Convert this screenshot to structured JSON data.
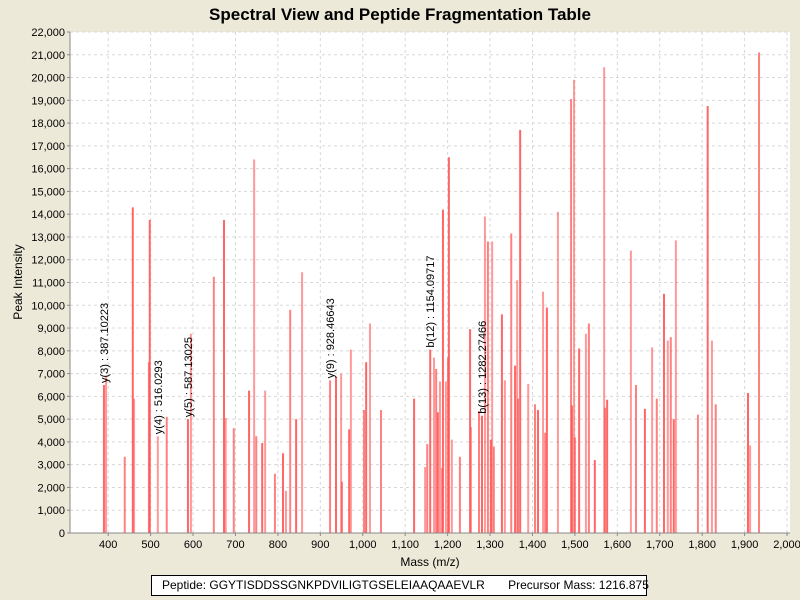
{
  "chart_data": {
    "type": "bar",
    "title": "Spectral View and Peptide Fragmentation Table",
    "xlabel": "Mass (m/z)",
    "ylabel": "Peak Intensity",
    "xlim": [
      310,
      2007
    ],
    "ylim": [
      0,
      22000
    ],
    "grid": true,
    "x_ticks": [
      "400",
      "500",
      "600",
      "700",
      "800",
      "900",
      "1,000",
      "1,100",
      "1,200",
      "1,300",
      "1,400",
      "1,500",
      "1,600",
      "1,700",
      "1,800",
      "1,900",
      "2,000"
    ],
    "x_tick_values": [
      400,
      500,
      600,
      700,
      800,
      900,
      1000,
      1100,
      1200,
      1300,
      1400,
      1500,
      1600,
      1700,
      1800,
      1900,
      2000
    ],
    "y_ticks": [
      "0",
      "1,000",
      "2,000",
      "3,000",
      "4,000",
      "5,000",
      "6,000",
      "7,000",
      "8,000",
      "9,000",
      "10,000",
      "11,000",
      "12,000",
      "13,000",
      "14,000",
      "15,000",
      "16,000",
      "17,000",
      "18,000",
      "19,000",
      "20,000",
      "21,000",
      "22,000"
    ],
    "peak_color": "#FF5555",
    "peaks": [
      [
        390,
        6500
      ],
      [
        395,
        6900
      ],
      [
        439,
        3350
      ],
      [
        458,
        14300
      ],
      [
        461,
        5900
      ],
      [
        496,
        7500
      ],
      [
        498,
        13750
      ],
      [
        517,
        4250
      ],
      [
        538,
        5100
      ],
      [
        588,
        5000
      ],
      [
        595,
        8750
      ],
      [
        649,
        11250
      ],
      [
        673,
        13750
      ],
      [
        677,
        5050
      ],
      [
        696,
        4600
      ],
      [
        732,
        6250
      ],
      [
        744,
        16400
      ],
      [
        749,
        4250
      ],
      [
        763,
        3950
      ],
      [
        770,
        6250
      ],
      [
        793,
        2600
      ],
      [
        812,
        3500
      ],
      [
        819,
        1850
      ],
      [
        829,
        9800
      ],
      [
        843,
        5000
      ],
      [
        857,
        11450
      ],
      [
        923,
        6700
      ],
      [
        937,
        6850
      ],
      [
        949,
        7000
      ],
      [
        951,
        2250
      ],
      [
        968,
        4550
      ],
      [
        972,
        8050
      ],
      [
        1003,
        5400
      ],
      [
        1008,
        7500
      ],
      [
        1017,
        9200
      ],
      [
        1043,
        5400
      ],
      [
        1121,
        5900
      ],
      [
        1147,
        2900
      ],
      [
        1152,
        3900
      ],
      [
        1159,
        8050
      ],
      [
        1168,
        7700
      ],
      [
        1173,
        7200
      ],
      [
        1177,
        5300
      ],
      [
        1182,
        6650
      ],
      [
        1187,
        2850
      ],
      [
        1189,
        14200
      ],
      [
        1196,
        6650
      ],
      [
        1201,
        7700
      ],
      [
        1203,
        16500
      ],
      [
        1210,
        4100
      ],
      [
        1229,
        3350
      ],
      [
        1253,
        8950
      ],
      [
        1255,
        4650
      ],
      [
        1274,
        5350
      ],
      [
        1281,
        5150
      ],
      [
        1288,
        13900
      ],
      [
        1295,
        12800
      ],
      [
        1302,
        4100
      ],
      [
        1305,
        12800
      ],
      [
        1309,
        3800
      ],
      [
        1328,
        9600
      ],
      [
        1335,
        6700
      ],
      [
        1350,
        13150
      ],
      [
        1359,
        7350
      ],
      [
        1364,
        11100
      ],
      [
        1366,
        5900
      ],
      [
        1371,
        17700
      ],
      [
        1390,
        6550
      ],
      [
        1406,
        5650
      ],
      [
        1413,
        5400
      ],
      [
        1425,
        10600
      ],
      [
        1430,
        4400
      ],
      [
        1434,
        9900
      ],
      [
        1460,
        14100
      ],
      [
        1491,
        19050
      ],
      [
        1493,
        5600
      ],
      [
        1498,
        19900
      ],
      [
        1500,
        4200
      ],
      [
        1510,
        8100
      ],
      [
        1526,
        8750
      ],
      [
        1533,
        9200
      ],
      [
        1547,
        3200
      ],
      [
        1569,
        20450
      ],
      [
        1571,
        5500
      ],
      [
        1576,
        5850
      ],
      [
        1632,
        12400
      ],
      [
        1644,
        6500
      ],
      [
        1665,
        5450
      ],
      [
        1682,
        8150
      ],
      [
        1693,
        5900
      ],
      [
        1710,
        10500
      ],
      [
        1719,
        8450
      ],
      [
        1726,
        8600
      ],
      [
        1733,
        5000
      ],
      [
        1738,
        12850
      ],
      [
        1790,
        5200
      ],
      [
        1813,
        18750
      ],
      [
        1823,
        8450
      ],
      [
        1832,
        5650
      ],
      [
        1908,
        6150
      ],
      [
        1913,
        3850
      ],
      [
        1934,
        21100
      ]
    ],
    "annotations": [
      {
        "label": "y(3) : 387.10223",
        "x": 390,
        "y": 6500
      },
      {
        "label": "y(4) : 516.0293",
        "x": 517,
        "y": 4250
      },
      {
        "label": "y(5) : 587.13025",
        "x": 588,
        "y": 5000
      },
      {
        "label": "y(9) : 928.46643",
        "x": 923,
        "y": 6700
      },
      {
        "label": "b(12) : 1154.09717",
        "x": 1159,
        "y": 8050
      },
      {
        "label": "b(13) : 1282.27466",
        "x": 1281,
        "y": 5150
      }
    ]
  },
  "footer": {
    "peptide": "Peptide: GGYTISDDSSGNKPDVILIGTGSELEIAAQAAEVLR",
    "precursor": "Precursor Mass: 1216.875"
  }
}
